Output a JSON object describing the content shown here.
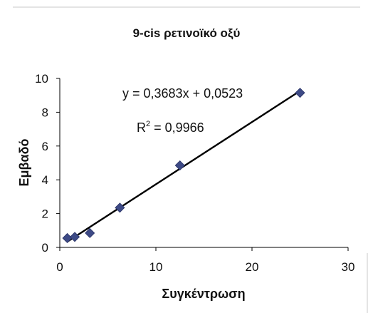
{
  "chart_data": {
    "type": "scatter",
    "title": "9-cis ρετινοϊκό οξύ",
    "xlabel": "Συγκέντρωση",
    "ylabel": "Εμβαδό",
    "xlim": [
      0,
      30
    ],
    "ylim": [
      0,
      10
    ],
    "x_ticks": [
      "0",
      "10",
      "20",
      "30"
    ],
    "y_ticks": [
      "0",
      "2",
      "4",
      "6",
      "8",
      "10"
    ],
    "grid": false,
    "legend": "none",
    "marker": "diamond",
    "marker_color": "#3d4a86",
    "trendline_color": "#000000",
    "series": [
      {
        "x": [
          0.78,
          1.56,
          3.125,
          6.25,
          12.5,
          25
        ],
        "y": [
          0.55,
          0.62,
          0.85,
          2.35,
          4.85,
          9.15
        ]
      }
    ],
    "trendline": {
      "slope": 0.3683,
      "intercept": 0.0523,
      "x_range": [
        0.78,
        25
      ]
    },
    "annotations": {
      "equation": "y = 0,3683x + 0,0523",
      "r2_prefix": "R",
      "r2_sup": "2",
      "r2_value": " = 0,9966"
    }
  }
}
